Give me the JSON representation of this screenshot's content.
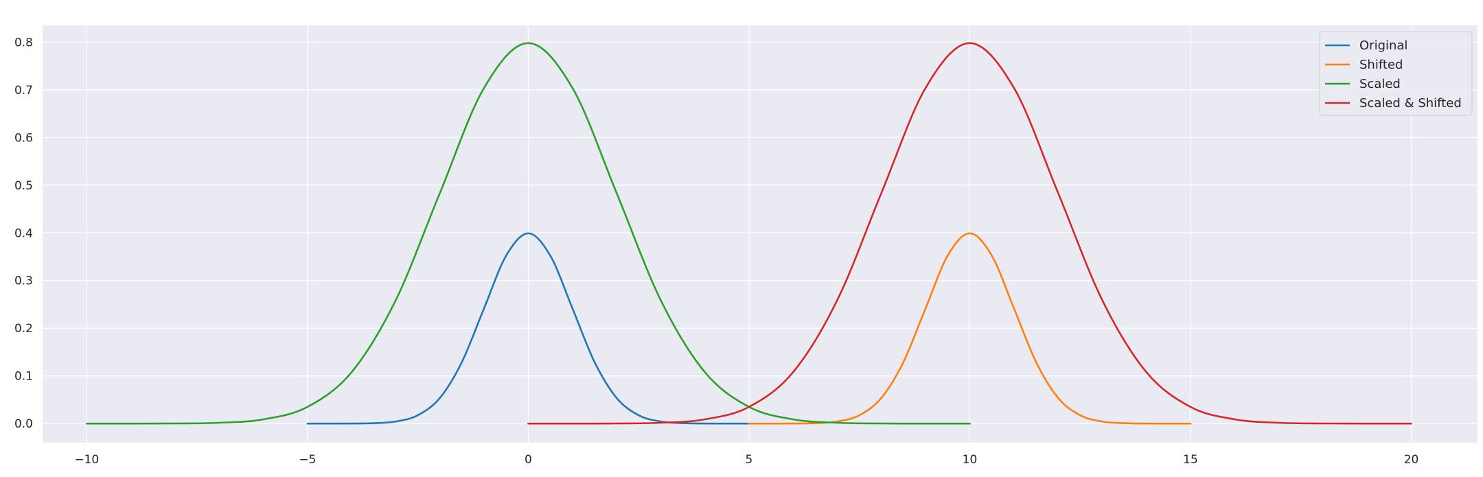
{
  "chart_data": {
    "type": "line",
    "title": "",
    "xlabel": "",
    "ylabel": "",
    "xlim": [
      -11,
      21.5
    ],
    "ylim": [
      -0.04,
      0.835
    ],
    "grid": true,
    "legend_position": "top-right",
    "xticks": [
      -10,
      -5,
      0,
      5,
      10,
      15,
      20
    ],
    "xtick_labels": [
      "−10",
      "−5",
      "0",
      "5",
      "10",
      "15",
      "20"
    ],
    "yticks": [
      0.0,
      0.1,
      0.2,
      0.3,
      0.4,
      0.5,
      0.6,
      0.7,
      0.8
    ],
    "ytick_labels": [
      "0.0",
      "0.1",
      "0.2",
      "0.3",
      "0.4",
      "0.5",
      "0.6",
      "0.7",
      "0.8"
    ],
    "colors": {
      "plot_background": "#eaeaf2",
      "grid": "#ffffff",
      "text": "#262626"
    },
    "series": [
      {
        "name": "Original",
        "color": "#1f77b4",
        "x": [
          -5,
          -4.5,
          -4,
          -3.5,
          -3,
          -2.5,
          -2,
          -1.5,
          -1,
          -0.5,
          0,
          0.5,
          1,
          1.5,
          2,
          2.5,
          3,
          3.5,
          4,
          4.5,
          5
        ],
        "y": [
          0.0,
          0.0,
          0.0001,
          0.0009,
          0.0044,
          0.0175,
          0.054,
          0.1295,
          0.242,
          0.3521,
          0.3989,
          0.3521,
          0.242,
          0.1295,
          0.054,
          0.0175,
          0.0044,
          0.0009,
          0.0001,
          0.0,
          0.0
        ]
      },
      {
        "name": "Shifted",
        "color": "#ff7f0e",
        "x": [
          5,
          5.5,
          6,
          6.5,
          7,
          7.5,
          8,
          8.5,
          9,
          9.5,
          10,
          10.5,
          11,
          11.5,
          12,
          12.5,
          13,
          13.5,
          14,
          14.5,
          15
        ],
        "y": [
          0.0,
          0.0,
          0.0001,
          0.0009,
          0.0044,
          0.0175,
          0.054,
          0.1295,
          0.242,
          0.3521,
          0.3989,
          0.3521,
          0.242,
          0.1295,
          0.054,
          0.0175,
          0.0044,
          0.0009,
          0.0001,
          0.0,
          0.0
        ]
      },
      {
        "name": "Scaled",
        "color": "#2ca02c",
        "x": [
          -10,
          -9,
          -8,
          -7,
          -6,
          -5,
          -4,
          -3,
          -2,
          -1,
          0,
          1,
          2,
          3,
          4,
          5,
          6,
          7,
          8,
          9,
          10
        ],
        "y": [
          0.0,
          0.0,
          0.0003,
          0.0018,
          0.0089,
          0.035,
          0.108,
          0.259,
          0.4839,
          0.7041,
          0.7979,
          0.7041,
          0.4839,
          0.259,
          0.108,
          0.035,
          0.0089,
          0.0018,
          0.0003,
          0.0,
          0.0
        ]
      },
      {
        "name": "Scaled & Shifted",
        "color": "#d62728",
        "x": [
          0,
          1,
          2,
          3,
          4,
          5,
          6,
          7,
          8,
          9,
          10,
          11,
          12,
          13,
          14,
          15,
          16,
          17,
          18,
          19,
          20
        ],
        "y": [
          0.0,
          0.0,
          0.0003,
          0.0018,
          0.0089,
          0.035,
          0.108,
          0.259,
          0.4839,
          0.7041,
          0.7979,
          0.7041,
          0.4839,
          0.259,
          0.108,
          0.035,
          0.0089,
          0.0018,
          0.0003,
          0.0,
          0.0
        ]
      }
    ]
  }
}
